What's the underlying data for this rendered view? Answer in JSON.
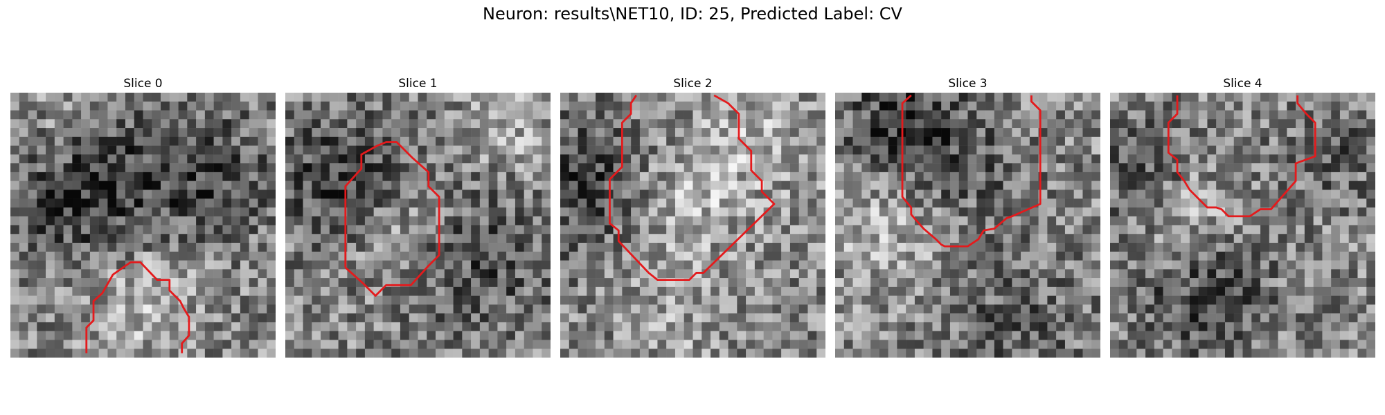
{
  "figure": {
    "title": "Neuron: results\\NET10, ID: 25, Predicted Label: CV"
  },
  "colors": {
    "contour": "#e41a1c",
    "colormap": "grayscale"
  },
  "panels": [
    {
      "title": "Slice 0"
    },
    {
      "title": "Slice 1"
    },
    {
      "title": "Slice 2"
    },
    {
      "title": "Slice 3"
    },
    {
      "title": "Slice 4"
    }
  ]
}
